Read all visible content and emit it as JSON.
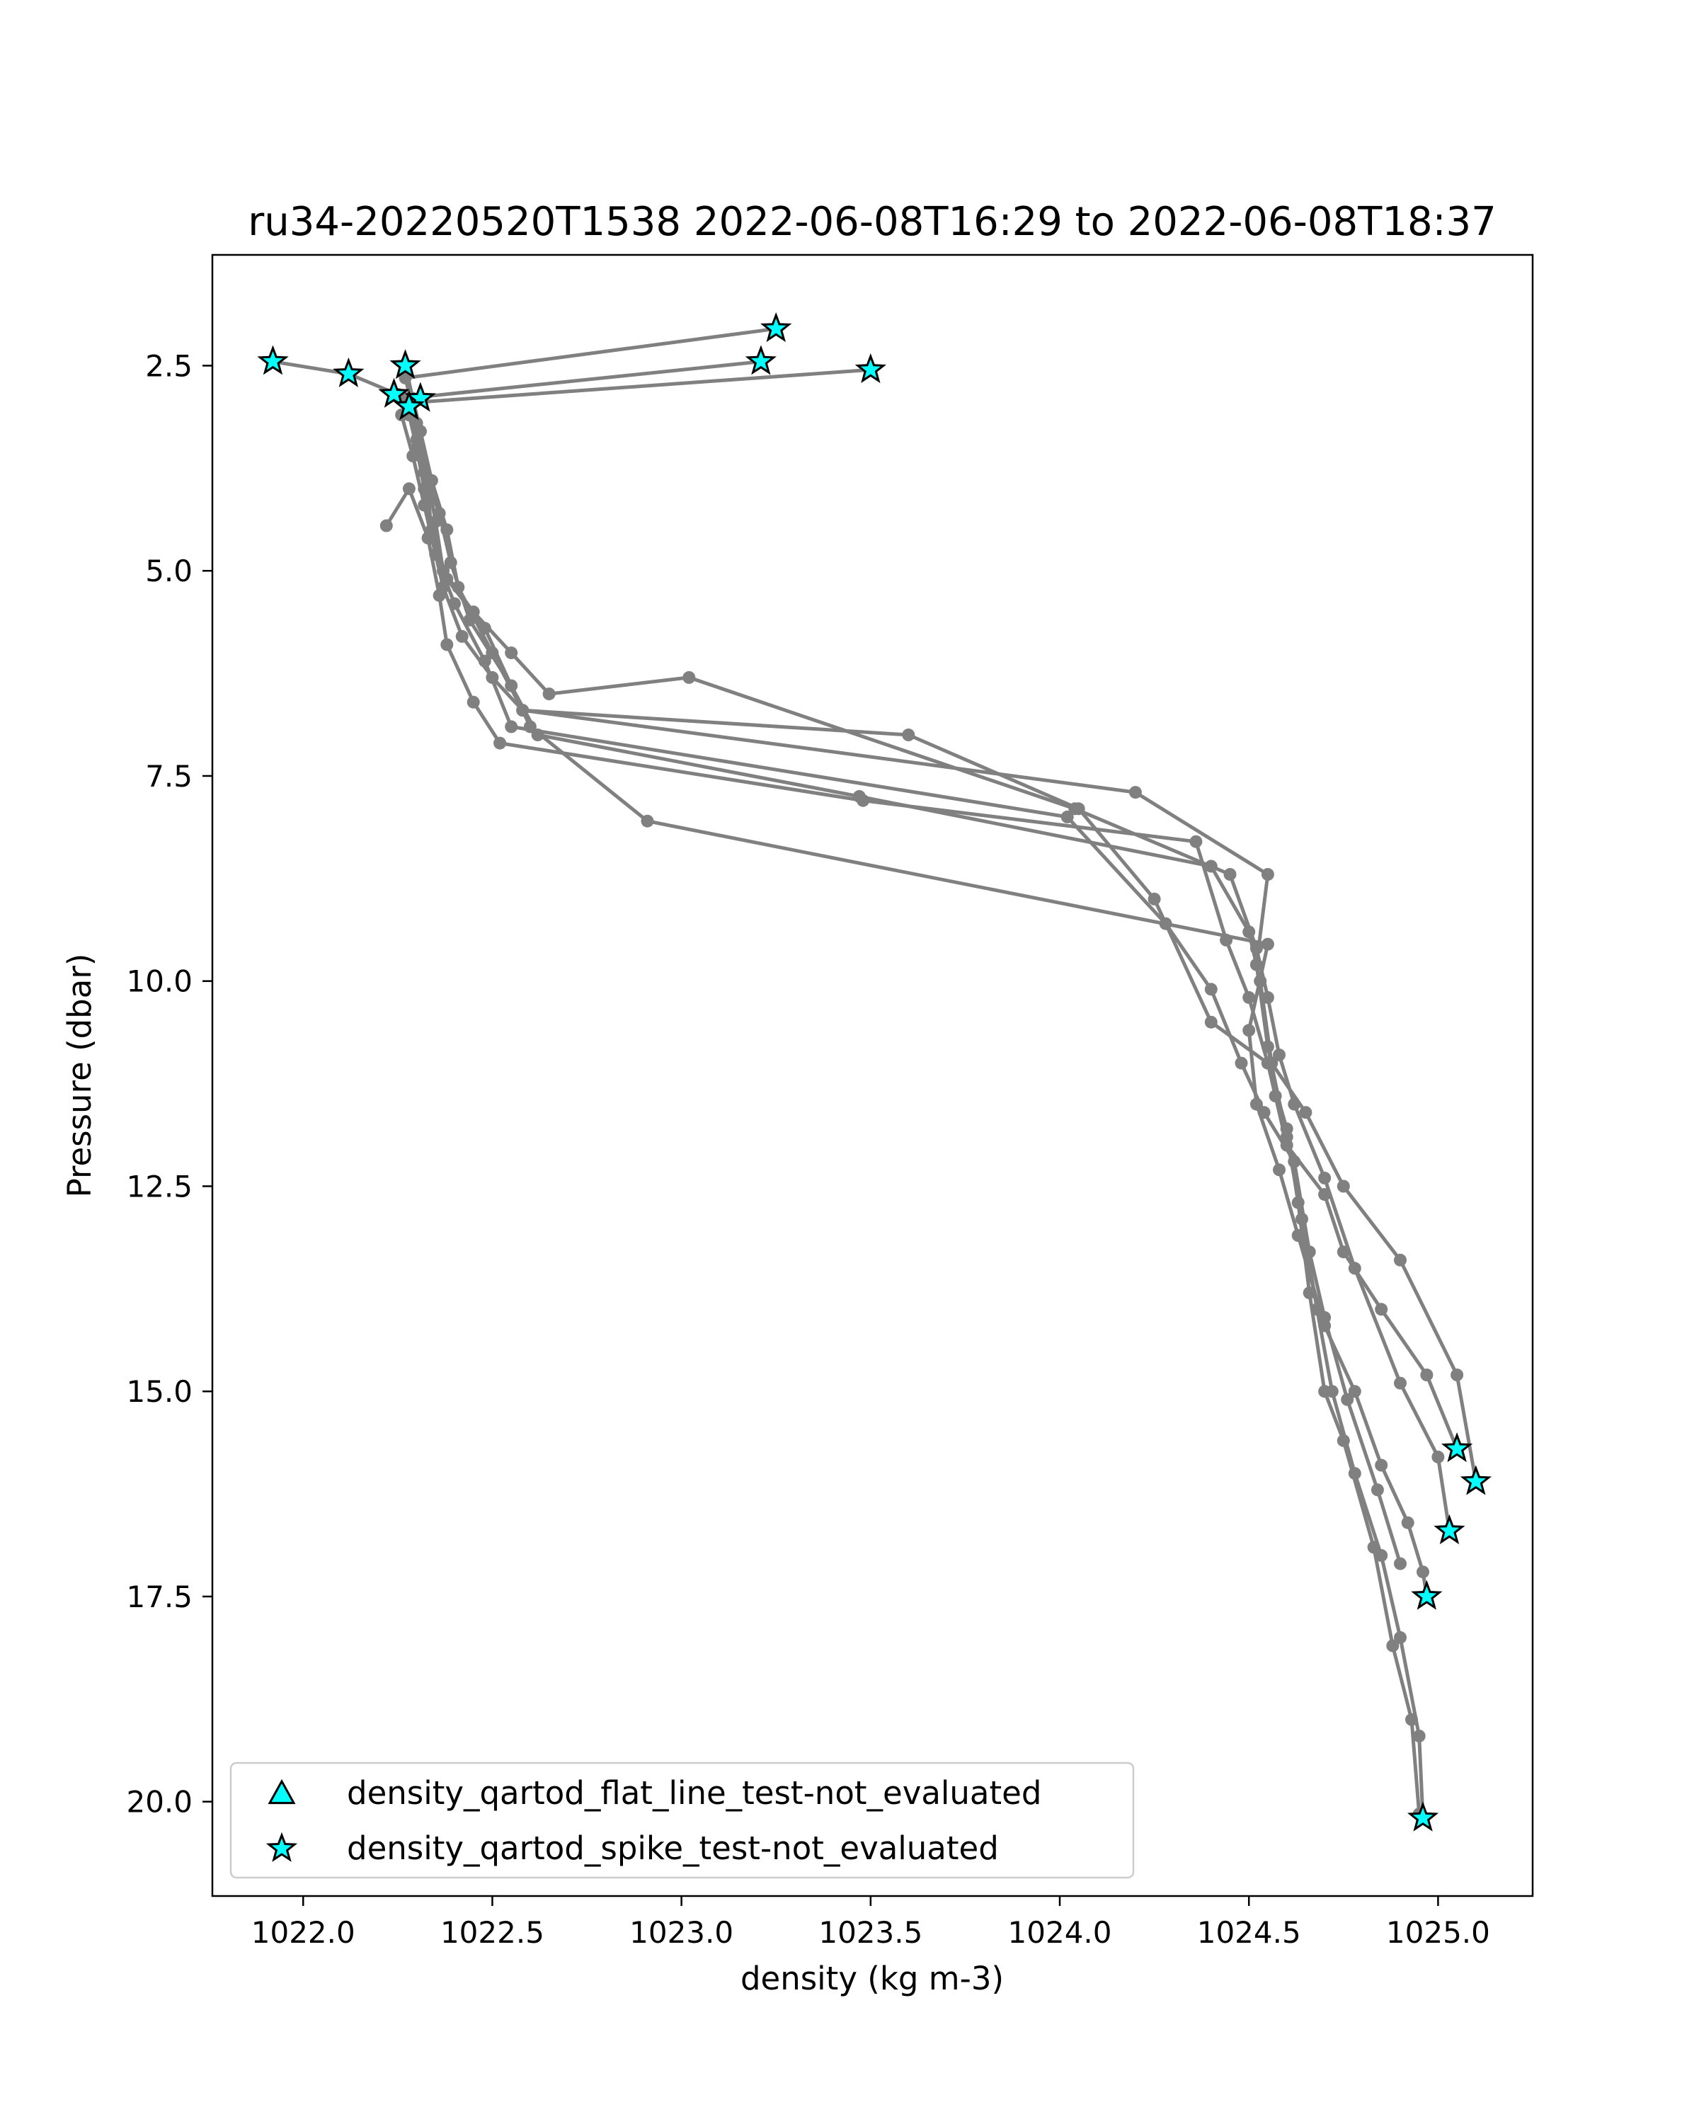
{
  "chart_data": {
    "type": "scatter",
    "title": "ru34-20220520T1538 2022-06-08T16:29 to 2022-06-08T18:37",
    "xlabel": "density (kg m-3)",
    "ylabel": "Pressure (dbar)",
    "xlim": [
      1021.76,
      1025.25
    ],
    "ylim": [
      21.15,
      1.15
    ],
    "y_inverted": true,
    "x_ticks": [
      1022.0,
      1022.5,
      1023.0,
      1023.5,
      1024.0,
      1024.5,
      1025.0
    ],
    "x_tick_labels": [
      "1022.0",
      "1022.5",
      "1023.0",
      "1023.5",
      "1024.0",
      "1024.5",
      "1025.0"
    ],
    "y_ticks": [
      2.5,
      5.0,
      7.5,
      10.0,
      12.5,
      15.0,
      17.5,
      20.0
    ],
    "y_tick_labels": [
      "2.5",
      "5.0",
      "7.5",
      "10.0",
      "12.5",
      "15.0",
      "17.5",
      "20.0"
    ],
    "grid": false,
    "legend_position": "lower-left",
    "colors": {
      "profile_line": "#808080",
      "marker_fill": "#00ffff",
      "marker_edge": "#000000"
    },
    "profiles": [
      {
        "x": [
          1023.25,
          1022.27,
          1022.3,
          1022.31,
          1022.33,
          1022.34,
          1022.37,
          1022.42,
          1022.5,
          1022.58,
          1023.6,
          1024.05,
          1024.25,
          1024.4,
          1024.55,
          1024.57,
          1024.6,
          1024.7,
          1024.75,
          1024.85,
          1024.97,
          1025.05
        ],
        "y": [
          2.05,
          2.65,
          3.2,
          3.6,
          4.0,
          4.6,
          5.2,
          5.8,
          6.3,
          6.7,
          7.0,
          7.9,
          9.0,
          10.5,
          11.0,
          11.4,
          12.0,
          12.6,
          13.3,
          14.0,
          14.8,
          15.7
        ]
      },
      {
        "x": [
          1023.21,
          1022.27,
          1022.3,
          1022.32,
          1022.36,
          1022.39,
          1022.44,
          1022.55,
          1022.62,
          1023.47,
          1024.4,
          1024.5,
          1024.53,
          1024.56,
          1024.65,
          1024.75,
          1024.9,
          1025.05,
          1025.1
        ],
        "y": [
          2.45,
          2.9,
          3.4,
          3.8,
          4.3,
          4.9,
          5.6,
          6.4,
          7.0,
          7.75,
          8.6,
          9.4,
          10.0,
          11.0,
          11.6,
          12.5,
          13.4,
          14.8,
          16.1
        ]
      },
      {
        "x": [
          1023.5,
          1022.29,
          1022.31,
          1022.33,
          1022.35,
          1022.37,
          1022.45,
          1022.55,
          1022.65,
          1023.02,
          1024.04,
          1024.45,
          1024.52,
          1024.55,
          1024.58,
          1024.62,
          1024.7,
          1024.78,
          1024.9,
          1025.0,
          1025.03
        ],
        "y": [
          2.55,
          2.95,
          3.3,
          3.9,
          4.4,
          5.0,
          5.5,
          6.0,
          6.5,
          6.3,
          7.9,
          8.7,
          9.6,
          10.2,
          10.9,
          11.5,
          12.4,
          13.5,
          14.9,
          15.8,
          16.7
        ]
      },
      {
        "x": [
          1021.92,
          1022.12,
          1022.25,
          1022.28,
          1022.3,
          1022.32,
          1022.34,
          1022.38,
          1022.48,
          1022.6,
          1022.91,
          1024.55,
          1024.5,
          1024.52,
          1024.58,
          1024.63,
          1024.7,
          1024.78,
          1024.85,
          1024.92,
          1024.96,
          1024.97
        ],
        "y": [
          2.45,
          2.6,
          2.85,
          3.1,
          3.5,
          4.0,
          4.5,
          5.1,
          5.7,
          6.9,
          8.05,
          9.55,
          10.6,
          11.5,
          12.3,
          13.1,
          14.2,
          15.0,
          15.9,
          16.6,
          17.2,
          17.5
        ]
      },
      {
        "x": [
          1022.27,
          1022.29,
          1022.31,
          1022.34,
          1022.38,
          1022.41,
          1022.5,
          1022.58,
          1024.2,
          1024.55,
          1024.52,
          1024.55,
          1024.6,
          1024.64,
          1024.68,
          1024.72,
          1024.78,
          1024.85,
          1024.9,
          1024.95,
          1024.96
        ],
        "y": [
          2.5,
          2.9,
          3.3,
          3.9,
          4.5,
          5.2,
          6.0,
          6.7,
          7.7,
          8.7,
          9.8,
          10.8,
          11.9,
          12.9,
          14.0,
          15.0,
          16.0,
          17.0,
          18.0,
          19.2,
          20.2
        ]
      },
      {
        "x": [
          1022.22,
          1022.28,
          1022.33,
          1022.36,
          1022.38,
          1022.45,
          1022.52,
          1023.48,
          1024.36,
          1024.44,
          1024.5,
          1024.55,
          1024.6,
          1024.63,
          1024.66,
          1024.7,
          1024.75,
          1024.83,
          1024.88,
          1024.93,
          1024.95
        ],
        "y": [
          4.45,
          4.0,
          4.6,
          5.3,
          5.9,
          6.6,
          7.1,
          7.8,
          8.3,
          9.5,
          10.2,
          11.0,
          11.8,
          12.7,
          13.8,
          15.0,
          15.6,
          16.9,
          18.1,
          19.0,
          20.15
        ]
      },
      {
        "x": [
          1022.26,
          1022.29,
          1022.32,
          1022.35,
          1022.4,
          1022.48,
          1022.55,
          1024.02,
          1024.28,
          1024.4,
          1024.48,
          1024.54,
          1024.62,
          1024.66,
          1024.7,
          1024.76,
          1024.84,
          1024.9
        ],
        "y": [
          3.1,
          3.6,
          4.2,
          4.8,
          5.4,
          6.1,
          6.9,
          8.0,
          9.3,
          10.1,
          11.0,
          11.6,
          12.2,
          13.3,
          14.1,
          15.1,
          16.2,
          17.1
        ]
      }
    ],
    "markers": {
      "flat_line_test": {
        "x": [],
        "y": []
      },
      "spike_test": {
        "x": [
          1023.25,
          1021.92,
          1023.21,
          1022.27,
          1022.12,
          1023.5,
          1022.24,
          1022.31,
          1022.28,
          1025.05,
          1025.1,
          1025.03,
          1024.97,
          1024.96
        ],
        "y": [
          2.05,
          2.45,
          2.45,
          2.5,
          2.6,
          2.55,
          2.85,
          2.9,
          3.0,
          15.7,
          16.1,
          16.7,
          17.5,
          20.2
        ]
      }
    },
    "legend": [
      {
        "marker": "triangle",
        "label": "density_qartod_flat_line_test-not_evaluated"
      },
      {
        "marker": "star",
        "label": "density_qartod_spike_test-not_evaluated"
      }
    ]
  }
}
